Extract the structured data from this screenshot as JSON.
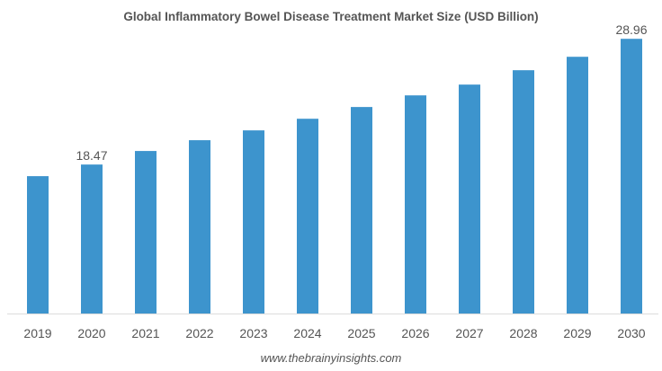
{
  "chart_data": {
    "type": "bar",
    "title": "Global Inflammatory Bowel Disease Treatment Market Size (USD Billion)",
    "xlabel": "",
    "ylabel": "",
    "categories": [
      "2019",
      "2020",
      "2021",
      "2022",
      "2023",
      "2024",
      "2025",
      "2026",
      "2027",
      "2028",
      "2029",
      "2030"
    ],
    "values": [
      17.5,
      18.47,
      19.6,
      20.5,
      21.32,
      22.29,
      23.27,
      24.24,
      25.14,
      26.34,
      27.46,
      28.96
    ],
    "data_labels": {
      "2020": "18.47",
      "2030": "28.96"
    },
    "ylim": [
      6.04,
      29.5
    ],
    "grid": false,
    "bar_color": "#3d94cd"
  },
  "source": "www.thebrainyinsights.com"
}
